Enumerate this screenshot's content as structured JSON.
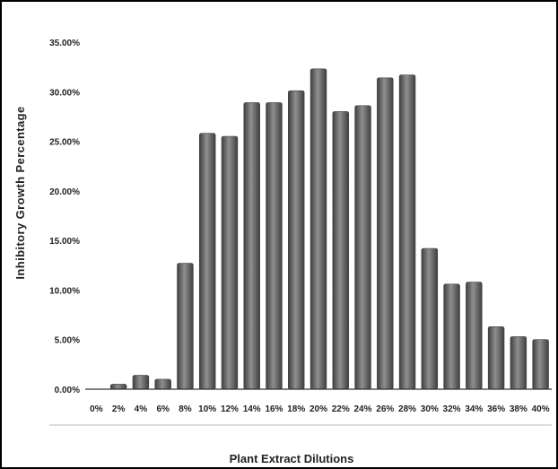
{
  "chart_data": {
    "type": "bar",
    "title": "",
    "xlabel": "Plant Extract Dilutions",
    "ylabel": "Inhibitory Growth Percentage",
    "categories": [
      "0%",
      "2%",
      "4%",
      "6%",
      "8%",
      "10%",
      "12%",
      "14%",
      "16%",
      "18%",
      "20%",
      "22%",
      "24%",
      "26%",
      "28%",
      "30%",
      "32%",
      "34%",
      "36%",
      "38%",
      "40%"
    ],
    "values": [
      0.0,
      0.5,
      1.4,
      1.0,
      12.7,
      25.8,
      25.5,
      28.9,
      28.9,
      30.1,
      32.3,
      28.0,
      28.6,
      31.4,
      31.7,
      14.2,
      10.6,
      10.8,
      6.3,
      5.3,
      5.0
    ],
    "ylim": [
      0,
      35
    ],
    "yticks": [
      "0.00%",
      "5.00%",
      "10.00%",
      "15.00%",
      "20.00%",
      "25.00%",
      "30.00%",
      "35.00%"
    ],
    "grid": false,
    "legend": "none",
    "colors": {
      "bar": "#6b6b6b",
      "bar_dark": "#3f3f3f",
      "bar_light": "#8f8f8f",
      "axis": "#333333"
    }
  }
}
